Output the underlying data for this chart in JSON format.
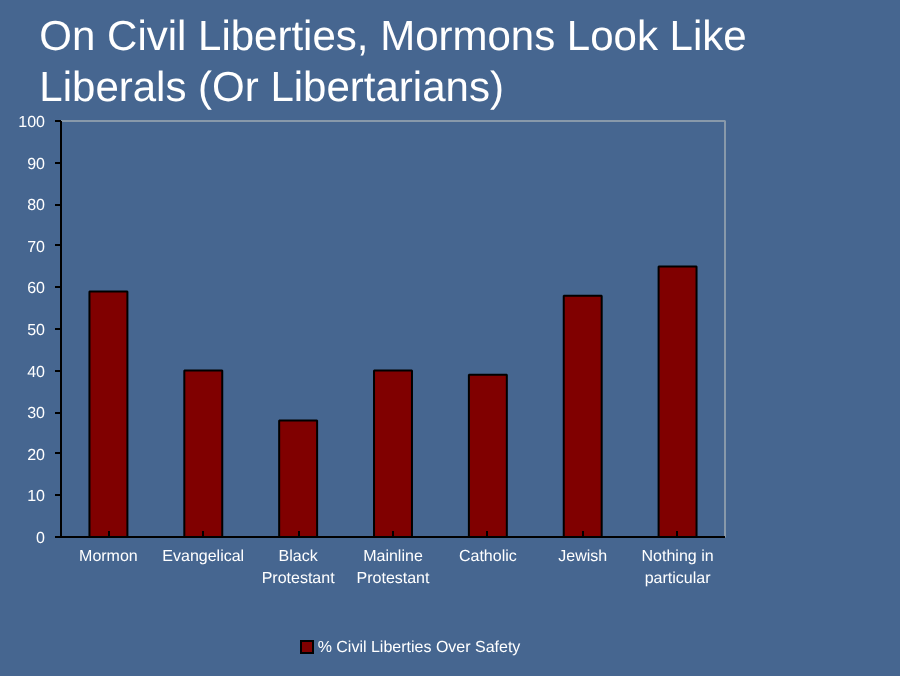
{
  "chart_data": {
    "type": "bar",
    "title": "On Civil Liberties, Mormons Look Like\nLiberals (Or Libertarians)",
    "categories": [
      "Mormon",
      "Evangelical",
      "Black\nProtestant",
      "Mainline\nProtestant",
      "Catholic",
      "Jewish",
      "Nothing in\nparticular"
    ],
    "series": [
      {
        "name": "% Civil Liberties Over Safety",
        "color": "#800000",
        "values": [
          59,
          40,
          28,
          40,
          39,
          58,
          65
        ]
      }
    ],
    "ylim": [
      0,
      100
    ],
    "yticks": [
      0,
      10,
      20,
      30,
      40,
      50,
      60,
      70,
      80,
      90,
      100
    ],
    "grid": false,
    "legend": "bottom"
  }
}
